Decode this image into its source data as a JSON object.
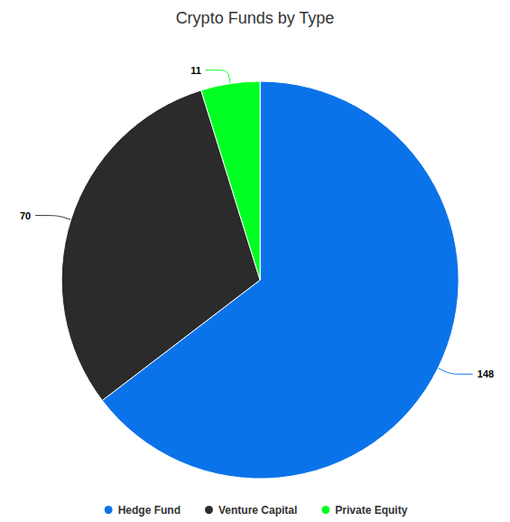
{
  "chart_data": {
    "type": "pie",
    "title": "Crypto Funds by Type",
    "categories": [
      "Hedge Fund",
      "Venture Capital",
      "Private Equity"
    ],
    "values": [
      148,
      70,
      11
    ],
    "colors": [
      "#0b73e9",
      "#2b2b2b",
      "#00ff22"
    ],
    "data_labels": true,
    "legend": "bottom"
  }
}
